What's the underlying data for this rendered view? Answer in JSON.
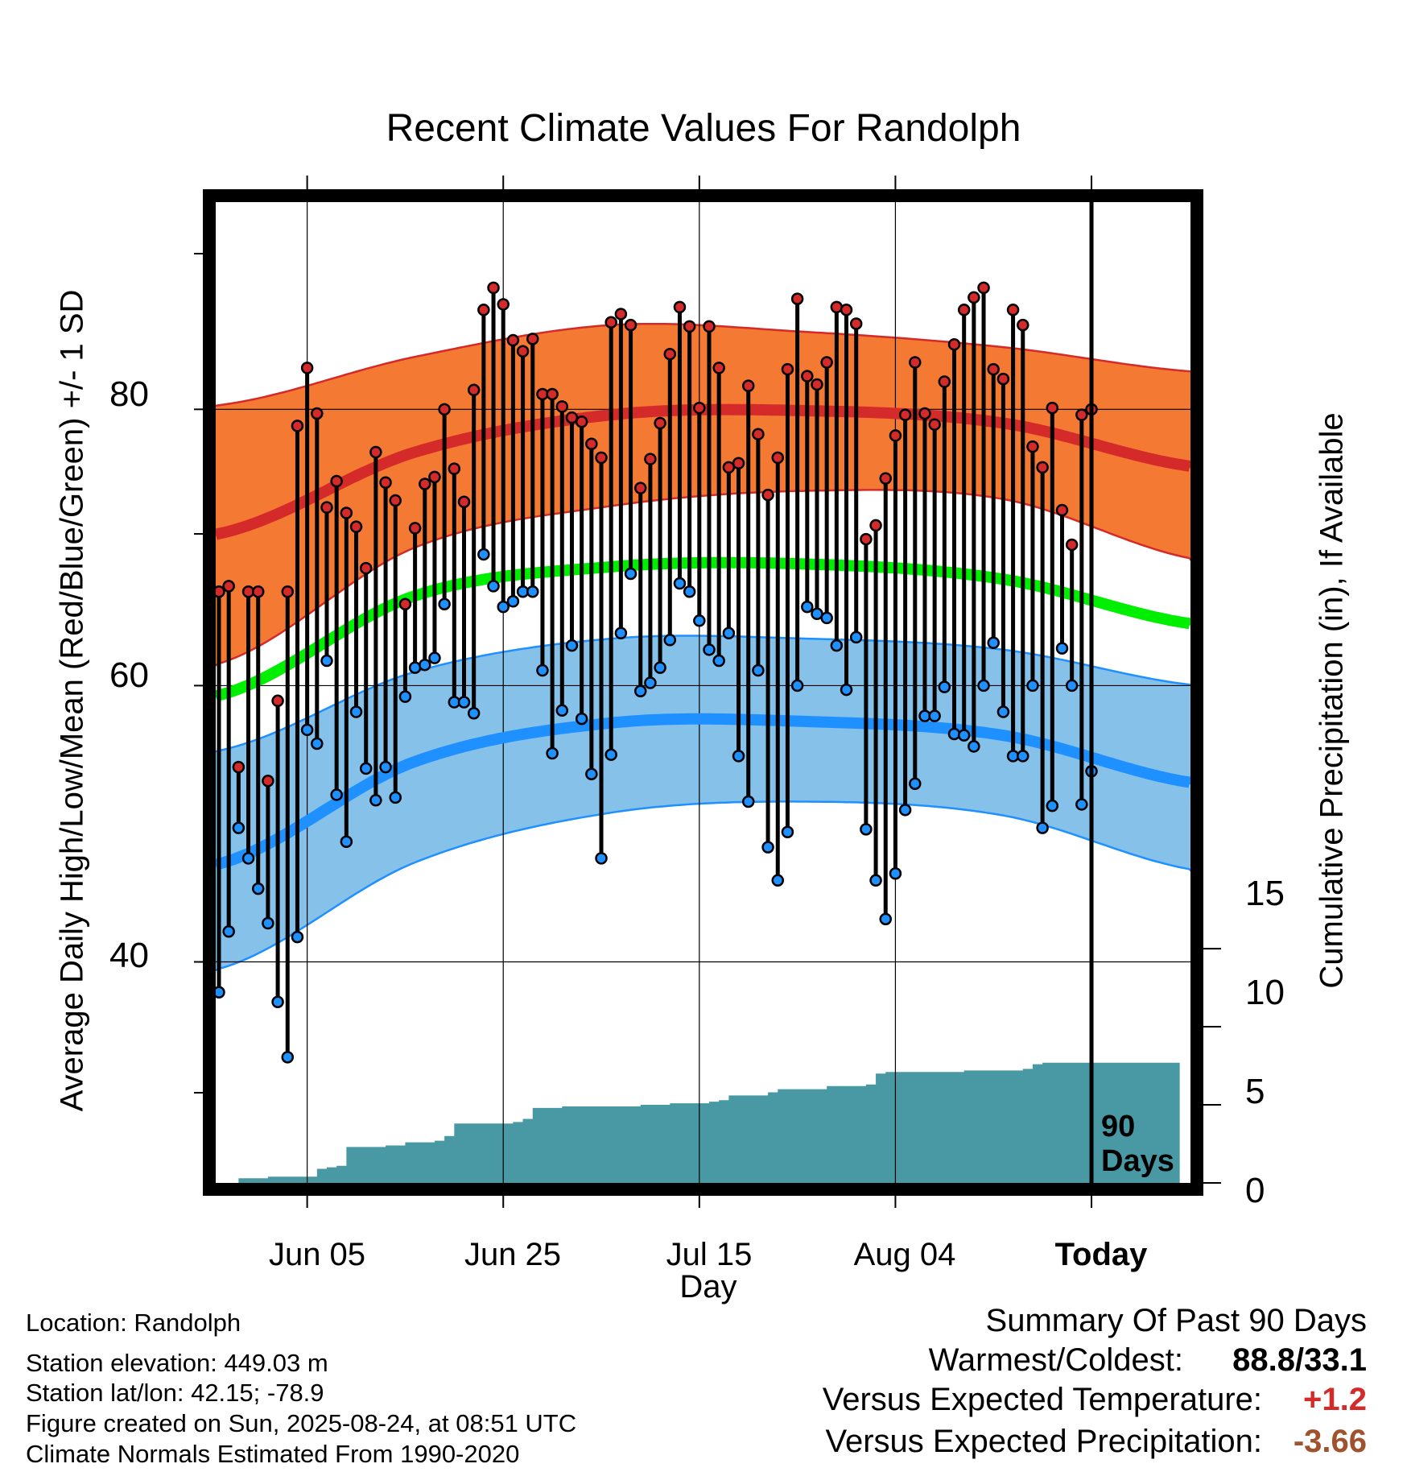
{
  "chart_data": {
    "type": "line",
    "title": "Recent Climate Values For Randolph",
    "xlabel": "Day",
    "ylabel": "Average Daily High/Low/Mean (Red/Blue/Green) +/- 1 SD",
    "ylabel_right": "Cumulative Precipitation (in), If Available",
    "x_tick_labels": [
      "Jun 05",
      "Jun 25",
      "Jul 15",
      "Aug 04",
      "Today"
    ],
    "y_tick_labels": [
      "40",
      "60",
      "80"
    ],
    "y2_tick_labels": [
      "0",
      "5",
      "10",
      "15"
    ],
    "ylim": [
      24,
      95
    ],
    "y2lim": [
      0,
      62.8
    ],
    "xlim": [
      -1.0,
      100.5
    ],
    "days_marker_label": "90 Days",
    "series": [
      {
        "name": "High",
        "values": [
          66.8,
          67.2,
          54.1,
          66.8,
          66.8,
          53.1,
          58.9,
          66.8,
          78.8,
          83.0,
          79.7,
          72.9,
          74.8,
          72.5,
          71.5,
          68.5,
          76.9,
          74.7,
          73.4,
          65.9,
          71.4,
          74.6,
          75.1,
          80.0,
          75.7,
          73.3,
          81.4,
          87.2,
          88.8,
          87.6,
          85.0,
          84.2,
          85.1,
          81.1,
          81.1,
          80.2,
          79.4,
          79.1,
          77.5,
          76.5,
          86.3,
          86.9,
          86.1,
          74.3,
          76.4,
          79.0,
          84.0,
          87.4,
          86.0,
          80.1,
          86.0,
          83.0,
          75.8,
          76.1,
          81.7,
          78.2,
          73.8,
          76.5,
          82.9,
          88.0,
          82.4,
          81.8,
          83.4,
          87.4,
          87.2,
          86.2,
          70.6,
          71.6,
          75.0,
          78.1,
          79.6,
          83.4,
          79.7,
          78.9,
          82.0,
          84.7,
          87.2,
          88.1,
          88.8,
          82.9,
          82.2,
          87.2,
          86.1,
          77.3,
          75.8,
          80.1,
          72.7,
          70.2,
          79.6,
          80.0
        ]
      },
      {
        "name": "Low",
        "values": [
          37.8,
          42.2,
          49.7,
          47.5,
          45.3,
          42.8,
          37.1,
          33.1,
          41.8,
          56.8,
          55.8,
          61.8,
          52.1,
          48.7,
          58.1,
          54.0,
          51.7,
          54.1,
          51.9,
          59.2,
          61.3,
          61.5,
          62.0,
          65.9,
          58.8,
          58.8,
          58.0,
          69.5,
          67.2,
          65.7,
          66.1,
          66.8,
          66.8,
          61.1,
          55.1,
          58.2,
          62.9,
          57.6,
          53.6,
          47.5,
          55.0,
          63.8,
          68.1,
          59.6,
          60.2,
          61.3,
          63.3,
          67.4,
          66.8,
          64.7,
          62.6,
          61.8,
          63.8,
          54.9,
          51.6,
          61.1,
          48.3,
          45.9,
          49.4,
          60.0,
          65.7,
          65.2,
          64.9,
          62.9,
          59.7,
          63.5,
          49.6,
          45.9,
          43.1,
          46.4,
          51.0,
          52.9,
          57.8,
          57.8,
          59.9,
          56.5,
          56.4,
          55.6,
          60.0,
          63.1,
          58.1,
          54.9,
          54.9,
          60.0,
          49.7,
          51.3,
          62.7,
          60.0,
          51.4,
          53.8
        ]
      },
      {
        "name": "Normal High",
        "values": [
          71.0,
          76.9,
          79.6,
          79.9,
          79.0,
          75.8
        ]
      },
      {
        "name": "Normal High +1 SD",
        "values": [
          80.3,
          83.8,
          86.1,
          85.6,
          84.5,
          82.7
        ]
      },
      {
        "name": "Normal High -1 SD",
        "values": [
          61.6,
          70.0,
          73.0,
          74.1,
          73.5,
          69.1
        ]
      },
      {
        "name": "Normal Mean",
        "values": [
          59.3,
          66.5,
          68.6,
          68.8,
          67.7,
          64.4
        ]
      },
      {
        "name": "Normal Low",
        "values": [
          47.1,
          54.5,
          57.3,
          57.4,
          56.4,
          52.9
        ]
      },
      {
        "name": "Normal Low +1 SD",
        "values": [
          55.3,
          61.0,
          63.4,
          63.4,
          62.6,
          60.0
        ]
      },
      {
        "name": "Normal Low -1 SD",
        "values": [
          39.5,
          47.2,
          50.8,
          51.6,
          50.6,
          46.6
        ]
      },
      {
        "name": "Cumulative Precipitation",
        "values": [
          0.0,
          0.0,
          0.3,
          0.3,
          0.3,
          0.4,
          0.4,
          0.4,
          0.4,
          0.4,
          0.9,
          1.0,
          1.1,
          2.3,
          2.3,
          2.3,
          2.3,
          2.4,
          2.4,
          2.6,
          2.6,
          2.6,
          2.7,
          3.0,
          3.8,
          3.8,
          3.8,
          3.8,
          3.8,
          3.8,
          3.9,
          4.1,
          4.8,
          4.8,
          4.8,
          4.9,
          4.9,
          4.9,
          4.9,
          4.9,
          4.9,
          4.9,
          4.9,
          5.0,
          5.0,
          5.0,
          5.1,
          5.1,
          5.1,
          5.1,
          5.2,
          5.3,
          5.6,
          5.6,
          5.6,
          5.6,
          5.8,
          6.0,
          6.0,
          6.0,
          6.0,
          6.0,
          6.2,
          6.2,
          6.2,
          6.2,
          6.3,
          7.0,
          7.1,
          7.1,
          7.1,
          7.1,
          7.1,
          7.1,
          7.1,
          7.1,
          7.2,
          7.2,
          7.2,
          7.2,
          7.2,
          7.2,
          7.3,
          7.6,
          7.7,
          7.7,
          7.7,
          7.7,
          7.7,
          7.7,
          7.7,
          7.7,
          7.7,
          7.7,
          7.7,
          7.7,
          7.7,
          7.7
        ]
      }
    ],
    "normals_x": [
      0,
      20,
      40,
      60,
      80,
      100
    ],
    "precip_x_note": "precip values indexed by day 0..97",
    "grid": true,
    "legend": "none",
    "colors": {
      "high": "#d42a2a",
      "high_band": "#f47a33",
      "low": "#1e90ff",
      "low_band": "#85c1e9",
      "mean": "#00ee00",
      "precip": "#4899a3",
      "positive_anom": "#d42a2a",
      "negative_anom": "#a0522d"
    }
  },
  "footer": {
    "location": "Location: Randolph",
    "elevation": "Station elevation: 449.03 m",
    "latlon": "Station lat/lon: 42.15; -78.9",
    "created": "Figure created on Sun, 2025-08-24, at 08:51 UTC",
    "normals": "Climate Normals Estimated From 1990-2020"
  },
  "summary": {
    "heading": "Summary Of Past 90 Days",
    "warmest_coldest_label": "Warmest/Coldest:",
    "warmest_coldest_value": "88.8/33.1",
    "temp_label": "Versus Expected Temperature:",
    "temp_value": "+1.2",
    "precip_label": "Versus Expected Precipitation:",
    "precip_value": "-3.66"
  }
}
